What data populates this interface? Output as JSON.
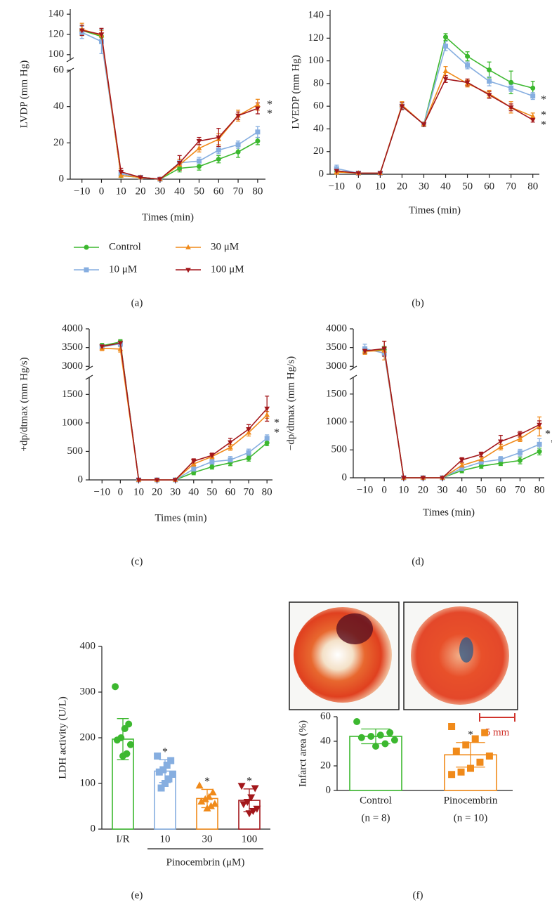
{
  "chart_data": [
    {
      "type": "line",
      "label": "(a)",
      "xlabel": "Times (min)",
      "ylabel": "LVDP (mm Hg)",
      "x": [
        -10,
        0,
        10,
        20,
        30,
        40,
        50,
        60,
        70,
        80
      ],
      "xlim": [
        -16,
        84
      ],
      "xticks": [
        {
          "value": -10,
          "label": "−10"
        },
        0,
        10,
        20,
        30,
        40,
        50,
        60,
        70,
        80
      ],
      "ylim": [
        0,
        145
      ],
      "ybreak": [
        60,
        95
      ],
      "yticks": [
        0,
        20,
        40,
        60,
        100,
        120,
        140
      ],
      "series": [
        {
          "name": "Control",
          "color": "#3cb82f",
          "marker": "circle",
          "values": [
            124,
            118,
            2,
            1,
            0,
            6,
            7,
            11,
            15,
            21
          ],
          "errors": [
            5,
            7,
            1,
            1,
            0.5,
            2,
            2,
            2,
            3,
            2
          ]
        },
        {
          "name": "10 μM",
          "color": "#86aee0",
          "marker": "square",
          "values": [
            122,
            113,
            3,
            1,
            0,
            9,
            10,
            16,
            19,
            26
          ],
          "errors": [
            6,
            12,
            1,
            1,
            0.5,
            2,
            2,
            2,
            2,
            3
          ]
        },
        {
          "name": "30 μM",
          "color": "#f08a1a",
          "marker": "triangle",
          "values": [
            125,
            119,
            2,
            1,
            0,
            8,
            17,
            22,
            35,
            41
          ],
          "errors": [
            6,
            5,
            1,
            1,
            0.5,
            3,
            2,
            3,
            3,
            3
          ]
        },
        {
          "name": "100 μM",
          "color": "#a3171b",
          "marker": "triangle-down",
          "values": [
            124,
            120,
            4,
            1,
            0,
            9,
            21,
            23,
            35,
            39
          ],
          "errors": [
            5,
            6,
            2,
            1,
            0.5,
            4,
            2,
            5,
            2,
            3
          ]
        }
      ],
      "annotations": [
        "*",
        "*"
      ]
    },
    {
      "type": "line",
      "label": "(b)",
      "xlabel": "Times (min)",
      "ylabel": "LVEDP (mm Hg)",
      "x": [
        -10,
        0,
        10,
        20,
        30,
        40,
        50,
        60,
        70,
        80
      ],
      "xlim": [
        -13,
        83
      ],
      "xticks": [
        {
          "value": -10,
          "label": "−10"
        },
        0,
        10,
        20,
        30,
        40,
        50,
        60,
        70,
        80
      ],
      "ylim": [
        0,
        145
      ],
      "yticks": [
        0,
        20,
        40,
        60,
        80,
        100,
        120,
        140
      ],
      "series": [
        {
          "color": "#3cb82f",
          "marker": "circle",
          "values": [
            3,
            1,
            1,
            60,
            44,
            121,
            104,
            92,
            81,
            76
          ],
          "errors": [
            2,
            1,
            1,
            3,
            2,
            3,
            4,
            7,
            10,
            6
          ]
        },
        {
          "color": "#86aee0",
          "marker": "square",
          "values": [
            5,
            1,
            1,
            60,
            44,
            113,
            96,
            82,
            76,
            69
          ],
          "errors": [
            3,
            1,
            1,
            3,
            2,
            4,
            3,
            4,
            3,
            3
          ]
        },
        {
          "color": "#f08a1a",
          "marker": "triangle",
          "values": [
            2,
            1,
            1,
            61,
            44,
            91,
            80,
            71,
            59,
            51
          ],
          "errors": [
            2,
            1,
            1,
            3,
            2,
            4,
            3,
            3,
            5,
            3
          ]
        },
        {
          "color": "#a3171b",
          "marker": "triangle-down",
          "values": [
            3,
            1,
            1,
            60,
            44,
            84,
            81,
            70,
            59,
            48
          ],
          "errors": [
            2,
            1,
            1,
            3,
            2,
            3,
            3,
            3,
            3,
            2
          ]
        }
      ],
      "annotations": [
        "*",
        "*",
        "*"
      ]
    },
    {
      "type": "line",
      "label": "(c)",
      "xlabel": "Times (min)",
      "ylabel": "+dp/dtmax (mm Hg/s)",
      "x": [
        -10,
        0,
        10,
        20,
        30,
        40,
        50,
        60,
        70,
        80
      ],
      "xlim": [
        -17,
        83
      ],
      "xticks": [
        {
          "value": -10,
          "label": "−10"
        },
        0,
        10,
        20,
        30,
        40,
        50,
        60,
        70,
        80
      ],
      "ylim": [
        0,
        4000
      ],
      "ybreak": [
        1800,
        2950
      ],
      "yticks": [
        0,
        500,
        1000,
        1500,
        3000,
        3500,
        4000
      ],
      "series": [
        {
          "color": "#3cb82f",
          "marker": "circle",
          "values": [
            3550,
            3650,
            0,
            0,
            0,
            130,
            230,
            300,
            380,
            650
          ],
          "errors": [
            60,
            60,
            10,
            10,
            10,
            40,
            40,
            50,
            50,
            50
          ]
        },
        {
          "color": "#86aee0",
          "marker": "square",
          "values": [
            3520,
            3600,
            0,
            0,
            0,
            190,
            320,
            350,
            480,
            730
          ],
          "errors": [
            60,
            80,
            10,
            10,
            10,
            50,
            50,
            60,
            60,
            60
          ]
        },
        {
          "color": "#f08a1a",
          "marker": "triangle",
          "values": [
            3480,
            3460,
            0,
            0,
            0,
            280,
            410,
            570,
            830,
            1140
          ],
          "errors": [
            60,
            80,
            10,
            10,
            10,
            40,
            40,
            50,
            60,
            60
          ]
        },
        {
          "color": "#a3171b",
          "marker": "triangle-down",
          "values": [
            3530,
            3620,
            0,
            0,
            0,
            330,
            430,
            660,
            890,
            1250
          ],
          "errors": [
            50,
            70,
            10,
            10,
            10,
            40,
            40,
            70,
            80,
            220
          ]
        }
      ],
      "annotations": [
        "*",
        "*"
      ]
    },
    {
      "type": "line",
      "label": "(d)",
      "xlabel": "Times (min)",
      "ylabel": "−dp/dtmax (mm Hg/s)",
      "x": [
        -10,
        0,
        10,
        20,
        30,
        40,
        50,
        60,
        70,
        80
      ],
      "xlim": [
        -16,
        82.5
      ],
      "xticks": [
        {
          "value": -10,
          "label": "−10"
        },
        0,
        10,
        20,
        30,
        40,
        50,
        60,
        70,
        80
      ],
      "ylim": [
        0,
        4000
      ],
      "ybreak": [
        1800,
        2950
      ],
      "yticks": [
        0,
        500,
        1000,
        1500,
        3000,
        3500,
        4000
      ],
      "series": [
        {
          "color": "#3cb82f",
          "marker": "circle",
          "values": [
            3420,
            3450,
            0,
            0,
            0,
            130,
            210,
            260,
            310,
            470
          ],
          "errors": [
            80,
            80,
            10,
            10,
            10,
            40,
            40,
            40,
            60,
            60
          ]
        },
        {
          "color": "#86aee0",
          "marker": "square",
          "values": [
            3470,
            3350,
            0,
            0,
            0,
            170,
            280,
            330,
            450,
            600
          ],
          "errors": [
            120,
            80,
            10,
            10,
            10,
            40,
            40,
            50,
            60,
            100
          ]
        },
        {
          "color": "#f08a1a",
          "marker": "triangle",
          "values": [
            3400,
            3420,
            0,
            0,
            0,
            220,
            330,
            550,
            700,
            920
          ],
          "errors": [
            80,
            250,
            10,
            10,
            10,
            40,
            40,
            50,
            50,
            170
          ]
        },
        {
          "color": "#a3171b",
          "marker": "triangle-down",
          "values": [
            3410,
            3470,
            0,
            0,
            0,
            320,
            420,
            650,
            780,
            950
          ],
          "errors": [
            60,
            200,
            10,
            10,
            10,
            40,
            40,
            110,
            50,
            70
          ]
        }
      ],
      "annotations": [
        "*",
        "*"
      ]
    },
    {
      "type": "bar",
      "label": "(e)",
      "ylabel": "LDH activity (U/L)",
      "group_label": "Pinocembrin (μM)",
      "categories": [
        "I/R",
        "10",
        "30",
        "100"
      ],
      "values": [
        197,
        127,
        67,
        63
      ],
      "errors": [
        45,
        25,
        20,
        25
      ],
      "colors": [
        "#3cb82f",
        "#86aee0",
        "#f08a1a",
        "#a3171b"
      ],
      "markers": [
        "circle",
        "square",
        "triangle",
        "triangle-down"
      ],
      "points": [
        [
          312,
          230,
          220,
          200,
          195,
          185,
          165,
          160
        ],
        [
          160,
          150,
          140,
          130,
          125,
          120,
          110,
          100,
          90
        ],
        [
          95,
          80,
          70,
          65,
          60,
          55,
          50,
          45
        ],
        [
          95,
          90,
          70,
          60,
          55,
          45,
          40,
          35
        ]
      ],
      "ylim": [
        0,
        400
      ],
      "yticks": [
        0,
        100,
        200,
        300,
        400
      ],
      "annotations": [
        "*",
        "*",
        "*"
      ]
    },
    {
      "type": "bar",
      "label": "(f)",
      "ylabel": "Infarct area (%)",
      "categories": [
        "Control",
        "Pinocembrin"
      ],
      "category_notes": [
        "(n = 8)",
        "(n = 10)"
      ],
      "values": [
        44,
        29
      ],
      "errors": [
        6,
        10
      ],
      "colors": [
        "#3cb82f",
        "#f08a1a"
      ],
      "markers": [
        "circle",
        "square"
      ],
      "points": [
        [
          56,
          47,
          45,
          44,
          43,
          41,
          38,
          36
        ],
        [
          52,
          47,
          42,
          37,
          32,
          28,
          23,
          18,
          15,
          13
        ]
      ],
      "ylim": [
        0,
        60
      ],
      "yticks": [
        0,
        20,
        40,
        60
      ],
      "annotations": [
        "*"
      ],
      "scale_bar_label": "5 mm"
    }
  ]
}
